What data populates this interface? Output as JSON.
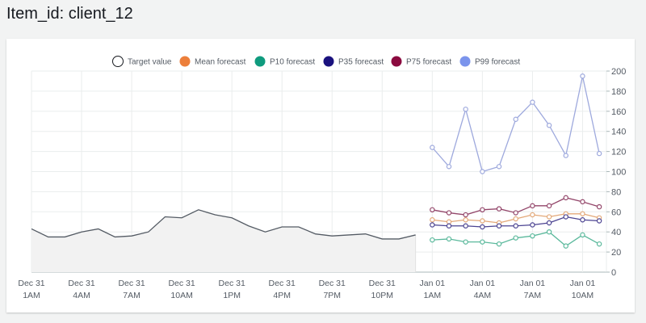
{
  "page": {
    "title": "Item_id: client_12"
  },
  "chart_data": {
    "type": "line",
    "title": "",
    "xlabel": "",
    "ylabel": "",
    "ylim": [
      0,
      200
    ],
    "yticks": [
      "0",
      "20",
      "40",
      "60",
      "80",
      "100",
      "120",
      "140",
      "160",
      "180",
      "200"
    ],
    "xticks": [
      {
        "line1": "Dec 31",
        "line2": "1AM"
      },
      {
        "line1": "Dec 31",
        "line2": "4AM"
      },
      {
        "line1": "Dec 31",
        "line2": "7AM"
      },
      {
        "line1": "Dec 31",
        "line2": "10AM"
      },
      {
        "line1": "Dec 31",
        "line2": "1PM"
      },
      {
        "line1": "Dec 31",
        "line2": "4PM"
      },
      {
        "line1": "Dec 31",
        "line2": "7PM"
      },
      {
        "line1": "Dec 31",
        "line2": "10PM"
      },
      {
        "line1": "Jan 01",
        "line2": "1AM"
      },
      {
        "line1": "Jan 01",
        "line2": "4AM"
      },
      {
        "line1": "Jan 01",
        "line2": "7AM"
      },
      {
        "line1": "Jan 01",
        "line2": "10AM"
      }
    ],
    "legend_position": "top",
    "grid": true,
    "target": {
      "name": "Target value",
      "color": "#545b64",
      "start_hour": 0,
      "values": [
        43,
        35,
        35,
        40,
        43,
        35,
        36,
        40,
        55,
        54,
        62,
        57,
        54,
        46,
        40,
        45,
        45,
        38,
        36,
        37,
        38,
        33,
        33,
        37
      ]
    },
    "forecast_start_hour": 24,
    "series": [
      {
        "name": "Mean forecast",
        "color": "#ec7f3b",
        "mark_color": "#e3a878",
        "values": [
          52,
          50,
          52,
          51,
          49,
          53,
          57,
          55,
          58,
          58,
          54
        ]
      },
      {
        "name": "P10 forecast",
        "color": "#0f9b7e",
        "mark_color": "#5bb99c",
        "values": [
          32,
          33,
          30,
          30,
          28,
          34,
          36,
          40,
          26,
          37,
          28
        ]
      },
      {
        "name": "P35 forecast",
        "color": "#1a127e",
        "mark_color": "#4b4391",
        "values": [
          47,
          46,
          46,
          45,
          46,
          46,
          47,
          49,
          55,
          52,
          51
        ]
      },
      {
        "name": "P75 forecast",
        "color": "#8b0a3f",
        "mark_color": "#93466a",
        "values": [
          62,
          59,
          57,
          62,
          63,
          59,
          66,
          66,
          74,
          70,
          65
        ]
      },
      {
        "name": "P99 forecast",
        "color": "#7b94ec",
        "mark_color": "#9ea9dd",
        "values": [
          124,
          105,
          162,
          100,
          105,
          152,
          169,
          146,
          116,
          195,
          118
        ]
      }
    ]
  }
}
